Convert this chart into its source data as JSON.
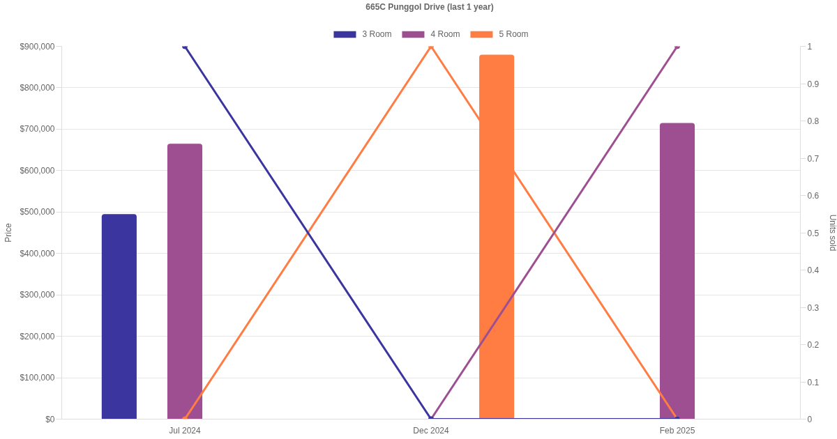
{
  "chart_data": {
    "type": "bar",
    "title": "665C Punggol Drive (last 1 year)",
    "ylabel": "Price",
    "y2label": "Units sold",
    "categories": [
      "Jul 2024",
      "Dec 2024",
      "Feb 2025"
    ],
    "series": [
      {
        "name": "3 Room",
        "color": "#3b35a0",
        "values": [
          495000,
          null,
          null
        ]
      },
      {
        "name": "4 Room",
        "color": "#9e4f91",
        "values": [
          665000,
          null,
          715000
        ]
      },
      {
        "name": "5 Room",
        "color": "#ff7c43",
        "values": [
          null,
          880000,
          null
        ]
      },
      {
        "type": "line",
        "axis": "y2",
        "color": "#3b35a0",
        "values": [
          1,
          0,
          0
        ]
      },
      {
        "type": "line",
        "axis": "y2",
        "color": "#9e4f91",
        "values": [
          null,
          0,
          1
        ]
      },
      {
        "type": "line",
        "axis": "y2",
        "color": "#ff7c43",
        "values": [
          0,
          1,
          0
        ]
      }
    ],
    "ylim": [
      0,
      900000
    ],
    "yticks": [
      {
        "value": 0,
        "label": "$0"
      },
      {
        "value": 100000,
        "label": "$100,000"
      },
      {
        "value": 200000,
        "label": "$200,000"
      },
      {
        "value": 300000,
        "label": "$300,000"
      },
      {
        "value": 400000,
        "label": "$400,000"
      },
      {
        "value": 500000,
        "label": "$500,000"
      },
      {
        "value": 600000,
        "label": "$600,000"
      },
      {
        "value": 700000,
        "label": "$700,000"
      },
      {
        "value": 800000,
        "label": "$800,000"
      },
      {
        "value": 900000,
        "label": "$900,000"
      }
    ],
    "y2lim": [
      0,
      1
    ],
    "y2ticks": [
      0,
      0.1,
      0.2,
      0.3,
      0.4,
      0.5,
      0.6,
      0.7,
      0.8,
      0.9,
      1
    ],
    "grid": "y",
    "legend": "top",
    "marker": "circle",
    "line_style": "solid"
  }
}
